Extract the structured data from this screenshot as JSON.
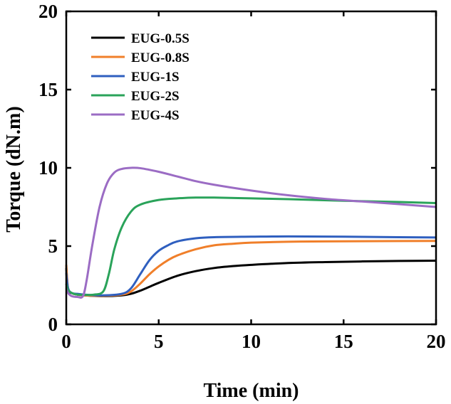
{
  "chart_data": {
    "type": "line",
    "xlabel": "Time (min)",
    "ylabel": "Torque (dN.m)",
    "xlim": [
      0,
      20
    ],
    "ylim": [
      0,
      20
    ],
    "xticks": [
      0,
      5,
      10,
      15,
      20
    ],
    "yticks": [
      0,
      5,
      10,
      15,
      20
    ],
    "grid": false,
    "legend": "top-left",
    "series": [
      {
        "name": "EUG-0.5S",
        "color": "#000000",
        "points": [
          [
            0,
            3.6
          ],
          [
            0.1,
            2.2
          ],
          [
            0.3,
            2.0
          ],
          [
            0.6,
            1.9
          ],
          [
            1,
            1.85
          ],
          [
            2,
            1.8
          ],
          [
            3,
            1.85
          ],
          [
            3.5,
            1.95
          ],
          [
            4,
            2.15
          ],
          [
            4.5,
            2.4
          ],
          [
            5,
            2.65
          ],
          [
            6,
            3.1
          ],
          [
            7,
            3.4
          ],
          [
            8,
            3.6
          ],
          [
            9,
            3.72
          ],
          [
            10,
            3.8
          ],
          [
            12,
            3.92
          ],
          [
            14,
            3.98
          ],
          [
            16,
            4.02
          ],
          [
            18,
            4.05
          ],
          [
            20,
            4.07
          ]
        ]
      },
      {
        "name": "EUG-0.8S",
        "color": "#f07f2a",
        "points": [
          [
            0,
            3.8
          ],
          [
            0.1,
            2.3
          ],
          [
            0.3,
            2.0
          ],
          [
            0.6,
            1.9
          ],
          [
            1,
            1.85
          ],
          [
            2,
            1.82
          ],
          [
            3,
            1.9
          ],
          [
            3.5,
            2.1
          ],
          [
            4,
            2.6
          ],
          [
            4.5,
            3.2
          ],
          [
            5,
            3.7
          ],
          [
            5.5,
            4.1
          ],
          [
            6,
            4.4
          ],
          [
            7,
            4.8
          ],
          [
            8,
            5.05
          ],
          [
            9,
            5.15
          ],
          [
            10,
            5.22
          ],
          [
            12,
            5.28
          ],
          [
            14,
            5.3
          ],
          [
            17,
            5.32
          ],
          [
            20,
            5.33
          ]
        ]
      },
      {
        "name": "EUG-1S",
        "color": "#2f5fbf",
        "points": [
          [
            0,
            3.3
          ],
          [
            0.1,
            2.3
          ],
          [
            0.3,
            2.0
          ],
          [
            0.6,
            1.95
          ],
          [
            1,
            1.9
          ],
          [
            2,
            1.85
          ],
          [
            3,
            1.95
          ],
          [
            3.5,
            2.3
          ],
          [
            4,
            3.2
          ],
          [
            4.5,
            4.1
          ],
          [
            5,
            4.7
          ],
          [
            5.5,
            5.05
          ],
          [
            6,
            5.3
          ],
          [
            7,
            5.5
          ],
          [
            8,
            5.57
          ],
          [
            10,
            5.6
          ],
          [
            12,
            5.62
          ],
          [
            15,
            5.6
          ],
          [
            18,
            5.57
          ],
          [
            20,
            5.55
          ]
        ]
      },
      {
        "name": "EUG-2S",
        "color": "#2aa35a",
        "points": [
          [
            0,
            2.6
          ],
          [
            0.1,
            2.2
          ],
          [
            0.3,
            2.0
          ],
          [
            0.6,
            1.9
          ],
          [
            1,
            1.88
          ],
          [
            1.5,
            1.9
          ],
          [
            2,
            2.1
          ],
          [
            2.3,
            3.2
          ],
          [
            2.6,
            4.8
          ],
          [
            3,
            6.2
          ],
          [
            3.5,
            7.2
          ],
          [
            4,
            7.65
          ],
          [
            5,
            7.95
          ],
          [
            6,
            8.05
          ],
          [
            7,
            8.1
          ],
          [
            8,
            8.1
          ],
          [
            10,
            8.05
          ],
          [
            12,
            8.0
          ],
          [
            15,
            7.9
          ],
          [
            18,
            7.82
          ],
          [
            20,
            7.75
          ]
        ]
      },
      {
        "name": "EUG-4S",
        "color": "#9b6cc4",
        "points": [
          [
            0,
            2.3
          ],
          [
            0.1,
            2.0
          ],
          [
            0.3,
            1.8
          ],
          [
            0.6,
            1.75
          ],
          [
            0.9,
            1.8
          ],
          [
            1.1,
            2.8
          ],
          [
            1.4,
            5.0
          ],
          [
            1.8,
            7.5
          ],
          [
            2.2,
            9.0
          ],
          [
            2.6,
            9.7
          ],
          [
            3,
            9.93
          ],
          [
            3.5,
            10.0
          ],
          [
            4,
            9.98
          ],
          [
            5,
            9.75
          ],
          [
            6,
            9.45
          ],
          [
            7,
            9.15
          ],
          [
            8,
            8.92
          ],
          [
            10,
            8.55
          ],
          [
            12,
            8.25
          ],
          [
            14,
            8.02
          ],
          [
            16,
            7.85
          ],
          [
            18,
            7.68
          ],
          [
            20,
            7.5
          ]
        ]
      }
    ]
  }
}
